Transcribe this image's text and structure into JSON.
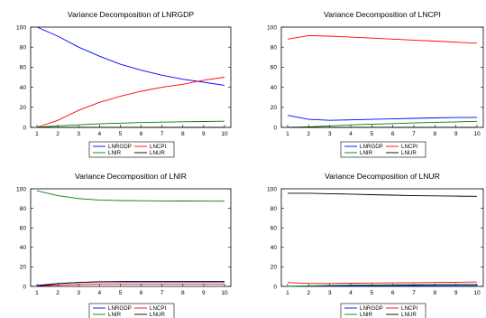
{
  "chart_data": [
    {
      "type": "line",
      "title": "Variance Decomposition of LNRGDP",
      "x": [
        1,
        2,
        3,
        4,
        5,
        6,
        7,
        8,
        9,
        10
      ],
      "ylim": [
        0,
        100
      ],
      "yticks": [
        0,
        20,
        40,
        60,
        80,
        100
      ],
      "grid": false,
      "legend_position": "bottom",
      "series": [
        {
          "name": "LNRGDP",
          "color": "#0000ff",
          "values": [
            100,
            91,
            80,
            71,
            63,
            57,
            52,
            48,
            45,
            42
          ]
        },
        {
          "name": "LNCPI",
          "color": "#ff0000",
          "values": [
            0,
            7,
            17,
            25,
            31,
            36,
            40,
            43,
            47,
            50
          ]
        },
        {
          "name": "LNIR",
          "color": "#008000",
          "values": [
            0,
            1.5,
            2.5,
            3.5,
            4.2,
            4.8,
            5.2,
            5.6,
            5.9,
            6.1
          ]
        },
        {
          "name": "LNUR",
          "color": "#000000",
          "values": [
            0,
            0,
            0,
            0,
            0,
            0,
            0,
            0,
            0,
            0
          ]
        }
      ]
    },
    {
      "type": "line",
      "title": "Variance Decomposition of LNCPI",
      "x": [
        1,
        2,
        3,
        4,
        5,
        6,
        7,
        8,
        9,
        10
      ],
      "ylim": [
        0,
        100
      ],
      "yticks": [
        0,
        20,
        40,
        60,
        80,
        100
      ],
      "grid": false,
      "legend_position": "bottom",
      "series": [
        {
          "name": "LNRGDP",
          "color": "#0000ff",
          "values": [
            12,
            8,
            7,
            7.5,
            8,
            8.5,
            9,
            9.5,
            9.8,
            10
          ]
        },
        {
          "name": "LNCPI",
          "color": "#ff0000",
          "values": [
            88,
            91.5,
            91,
            90,
            89,
            88,
            87,
            86,
            85,
            84
          ]
        },
        {
          "name": "LNIR",
          "color": "#008000",
          "values": [
            0,
            0.5,
            1.5,
            2.5,
            3.2,
            3.8,
            4.4,
            5,
            5.5,
            6
          ]
        },
        {
          "name": "LNUR",
          "color": "#000000",
          "values": [
            0,
            0,
            0,
            0,
            0,
            0,
            0,
            0,
            0,
            0
          ]
        }
      ]
    },
    {
      "type": "line",
      "title": "Variance Decomposition of LNIR",
      "x": [
        1,
        2,
        3,
        4,
        5,
        6,
        7,
        8,
        9,
        10
      ],
      "ylim": [
        0,
        100
      ],
      "yticks": [
        0,
        20,
        40,
        60,
        80,
        100
      ],
      "grid": false,
      "legend_position": "bottom",
      "series": [
        {
          "name": "LNRGDP",
          "color": "#0000ff",
          "values": [
            1,
            3,
            4,
            4.5,
            4.5,
            4.5,
            4.5,
            4.5,
            4.5,
            4.5
          ]
        },
        {
          "name": "LNCPI",
          "color": "#ff0000",
          "values": [
            0,
            1.5,
            2,
            2.5,
            2.5,
            2.5,
            2.5,
            2.5,
            2.5,
            2.5
          ]
        },
        {
          "name": "LNIR",
          "color": "#008000",
          "values": [
            98,
            93,
            90,
            88.5,
            88,
            87.8,
            87.6,
            87.5,
            87.4,
            87.3
          ]
        },
        {
          "name": "LNUR",
          "color": "#000000",
          "values": [
            0,
            3,
            4,
            4.8,
            5,
            5,
            5,
            5,
            5,
            5
          ]
        }
      ]
    },
    {
      "type": "line",
      "title": "Variance Decomposition of LNUR",
      "x": [
        1,
        2,
        3,
        4,
        5,
        6,
        7,
        8,
        9,
        10
      ],
      "ylim": [
        0,
        100
      ],
      "yticks": [
        0,
        20,
        40,
        60,
        80,
        100
      ],
      "grid": false,
      "legend_position": "bottom",
      "series": [
        {
          "name": "LNRGDP",
          "color": "#0000ff",
          "values": [
            0,
            0.3,
            0.5,
            0.6,
            0.7,
            0.8,
            0.9,
            1,
            1,
            1
          ]
        },
        {
          "name": "LNCPI",
          "color": "#ff0000",
          "values": [
            4,
            3,
            3,
            3.2,
            3.4,
            3.6,
            3.8,
            4,
            4.2,
            4.5
          ]
        },
        {
          "name": "LNIR",
          "color": "#008000",
          "values": [
            0,
            0.5,
            1,
            1.3,
            1.5,
            1.7,
            1.8,
            1.9,
            2,
            2
          ]
        },
        {
          "name": "LNUR",
          "color": "#000000",
          "values": [
            95.5,
            95.5,
            95,
            94.5,
            94,
            93.5,
            93,
            92.8,
            92.5,
            92.3
          ]
        }
      ]
    }
  ]
}
